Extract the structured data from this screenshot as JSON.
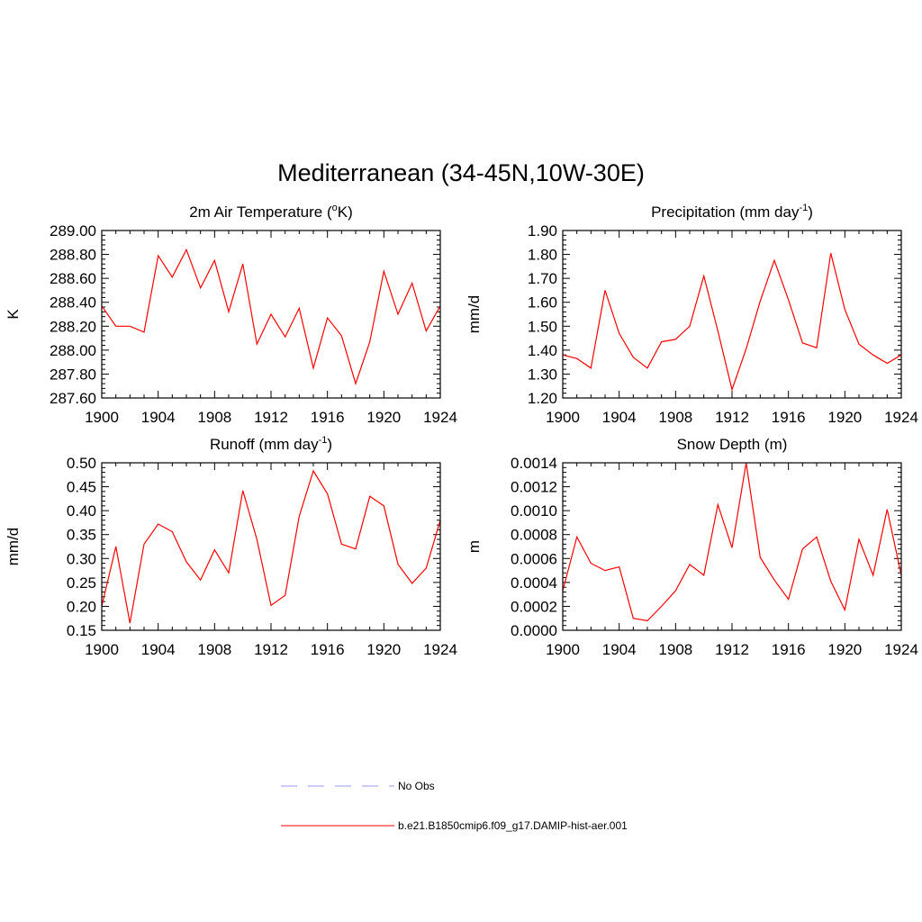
{
  "figure": {
    "title": "Mediterranean (34-45N,10W-30E)",
    "legend": [
      {
        "label": "No Obs",
        "color": "#9999ff",
        "dashed": true
      },
      {
        "label": "b.e21.B1850cmip6.f09_g17.DAMIP-hist-aer.001",
        "color": "#ff0000",
        "dashed": false
      }
    ]
  },
  "chart_data": [
    {
      "type": "line",
      "title": "2m Air Temperature (",
      "title_sup": "o",
      "title_after": "K)",
      "ylabel": "K",
      "xlim": [
        1900,
        1924
      ],
      "ylim": [
        287.6,
        289.0
      ],
      "x_ticks": [
        1900,
        1904,
        1908,
        1912,
        1916,
        1920,
        1924
      ],
      "y_ticks": [
        "287.60",
        "287.80",
        "288.00",
        "288.20",
        "288.40",
        "288.60",
        "288.80",
        "289.00"
      ],
      "y_tick_values": [
        287.6,
        287.8,
        288.0,
        288.2,
        288.4,
        288.6,
        288.8,
        289.0
      ],
      "color": "#ff0000",
      "x": [
        1900,
        1901,
        1902,
        1903,
        1904,
        1905,
        1906,
        1907,
        1908,
        1909,
        1910,
        1911,
        1912,
        1913,
        1914,
        1915,
        1916,
        1917,
        1918,
        1919,
        1920,
        1921,
        1922,
        1923,
        1924
      ],
      "values": [
        288.37,
        288.2,
        288.2,
        288.15,
        288.79,
        288.61,
        288.84,
        288.52,
        288.75,
        288.32,
        288.72,
        288.05,
        288.3,
        288.11,
        288.35,
        287.85,
        288.27,
        288.12,
        287.72,
        288.07,
        288.66,
        288.3,
        288.56,
        288.16,
        288.37
      ]
    },
    {
      "type": "line",
      "title": "Precipitation (mm day",
      "title_sup": "-1",
      "title_after": ")",
      "ylabel": "mm/d",
      "xlim": [
        1900,
        1924
      ],
      "ylim": [
        1.2,
        1.9
      ],
      "x_ticks": [
        1900,
        1904,
        1908,
        1912,
        1916,
        1920,
        1924
      ],
      "y_ticks": [
        "1.20",
        "1.30",
        "1.40",
        "1.50",
        "1.60",
        "1.70",
        "1.80",
        "1.90"
      ],
      "y_tick_values": [
        1.2,
        1.3,
        1.4,
        1.5,
        1.6,
        1.7,
        1.8,
        1.9
      ],
      "color": "#ff0000",
      "x": [
        1900,
        1901,
        1902,
        1903,
        1904,
        1905,
        1906,
        1907,
        1908,
        1909,
        1910,
        1911,
        1912,
        1913,
        1914,
        1915,
        1916,
        1917,
        1918,
        1919,
        1920,
        1921,
        1922,
        1923,
        1924
      ],
      "values": [
        1.38,
        1.365,
        1.325,
        1.65,
        1.47,
        1.37,
        1.325,
        1.435,
        1.445,
        1.5,
        1.71,
        1.48,
        1.235,
        1.405,
        1.605,
        1.775,
        1.61,
        1.43,
        1.41,
        1.805,
        1.57,
        1.425,
        1.38,
        1.345,
        1.38
      ]
    },
    {
      "type": "line",
      "title": "Runoff (mm day",
      "title_sup": "-1",
      "title_after": ")",
      "ylabel": "mm/d",
      "xlim": [
        1900,
        1924
      ],
      "ylim": [
        0.15,
        0.5
      ],
      "x_ticks": [
        1900,
        1904,
        1908,
        1912,
        1916,
        1920,
        1924
      ],
      "y_ticks": [
        "0.15",
        "0.20",
        "0.25",
        "0.30",
        "0.35",
        "0.40",
        "0.45",
        "0.50"
      ],
      "y_tick_values": [
        0.15,
        0.2,
        0.25,
        0.3,
        0.35,
        0.4,
        0.45,
        0.5
      ],
      "color": "#ff0000",
      "x": [
        1900,
        1901,
        1902,
        1903,
        1904,
        1905,
        1906,
        1907,
        1908,
        1909,
        1910,
        1911,
        1912,
        1913,
        1914,
        1915,
        1916,
        1917,
        1918,
        1919,
        1920,
        1921,
        1922,
        1923,
        1924
      ],
      "values": [
        0.2,
        0.325,
        0.165,
        0.33,
        0.372,
        0.356,
        0.293,
        0.255,
        0.318,
        0.27,
        0.442,
        0.34,
        0.202,
        0.223,
        0.388,
        0.483,
        0.435,
        0.33,
        0.32,
        0.43,
        0.41,
        0.288,
        0.248,
        0.28,
        0.38
      ]
    },
    {
      "type": "line",
      "title": "Snow Depth (m)",
      "title_sup": "",
      "title_after": "",
      "ylabel": "m",
      "xlim": [
        1900,
        1924
      ],
      "ylim": [
        0.0,
        0.0014
      ],
      "x_ticks": [
        1900,
        1904,
        1908,
        1912,
        1916,
        1920,
        1924
      ],
      "y_ticks": [
        "0.0000",
        "0.0002",
        "0.0004",
        "0.0006",
        "0.0008",
        "0.0010",
        "0.0012",
        "0.0014"
      ],
      "y_tick_values": [
        0,
        0.0002,
        0.0004,
        0.0006,
        0.0008,
        0.001,
        0.0012,
        0.0014
      ],
      "color": "#ff0000",
      "x": [
        1900,
        1901,
        1902,
        1903,
        1904,
        1905,
        1906,
        1907,
        1908,
        1909,
        1910,
        1911,
        1912,
        1913,
        1914,
        1915,
        1916,
        1917,
        1918,
        1919,
        1920,
        1921,
        1922,
        1923,
        1924
      ],
      "values": [
        0.00033,
        0.00078,
        0.00056,
        0.0005,
        0.00053,
        0.0001,
        8e-05,
        0.0002,
        0.00033,
        0.00055,
        0.00046,
        0.00105,
        0.00069,
        0.0014,
        0.00061,
        0.00042,
        0.00026,
        0.00068,
        0.00078,
        0.00041,
        0.00017,
        0.00076,
        0.00046,
        0.00101,
        0.00046
      ]
    }
  ]
}
